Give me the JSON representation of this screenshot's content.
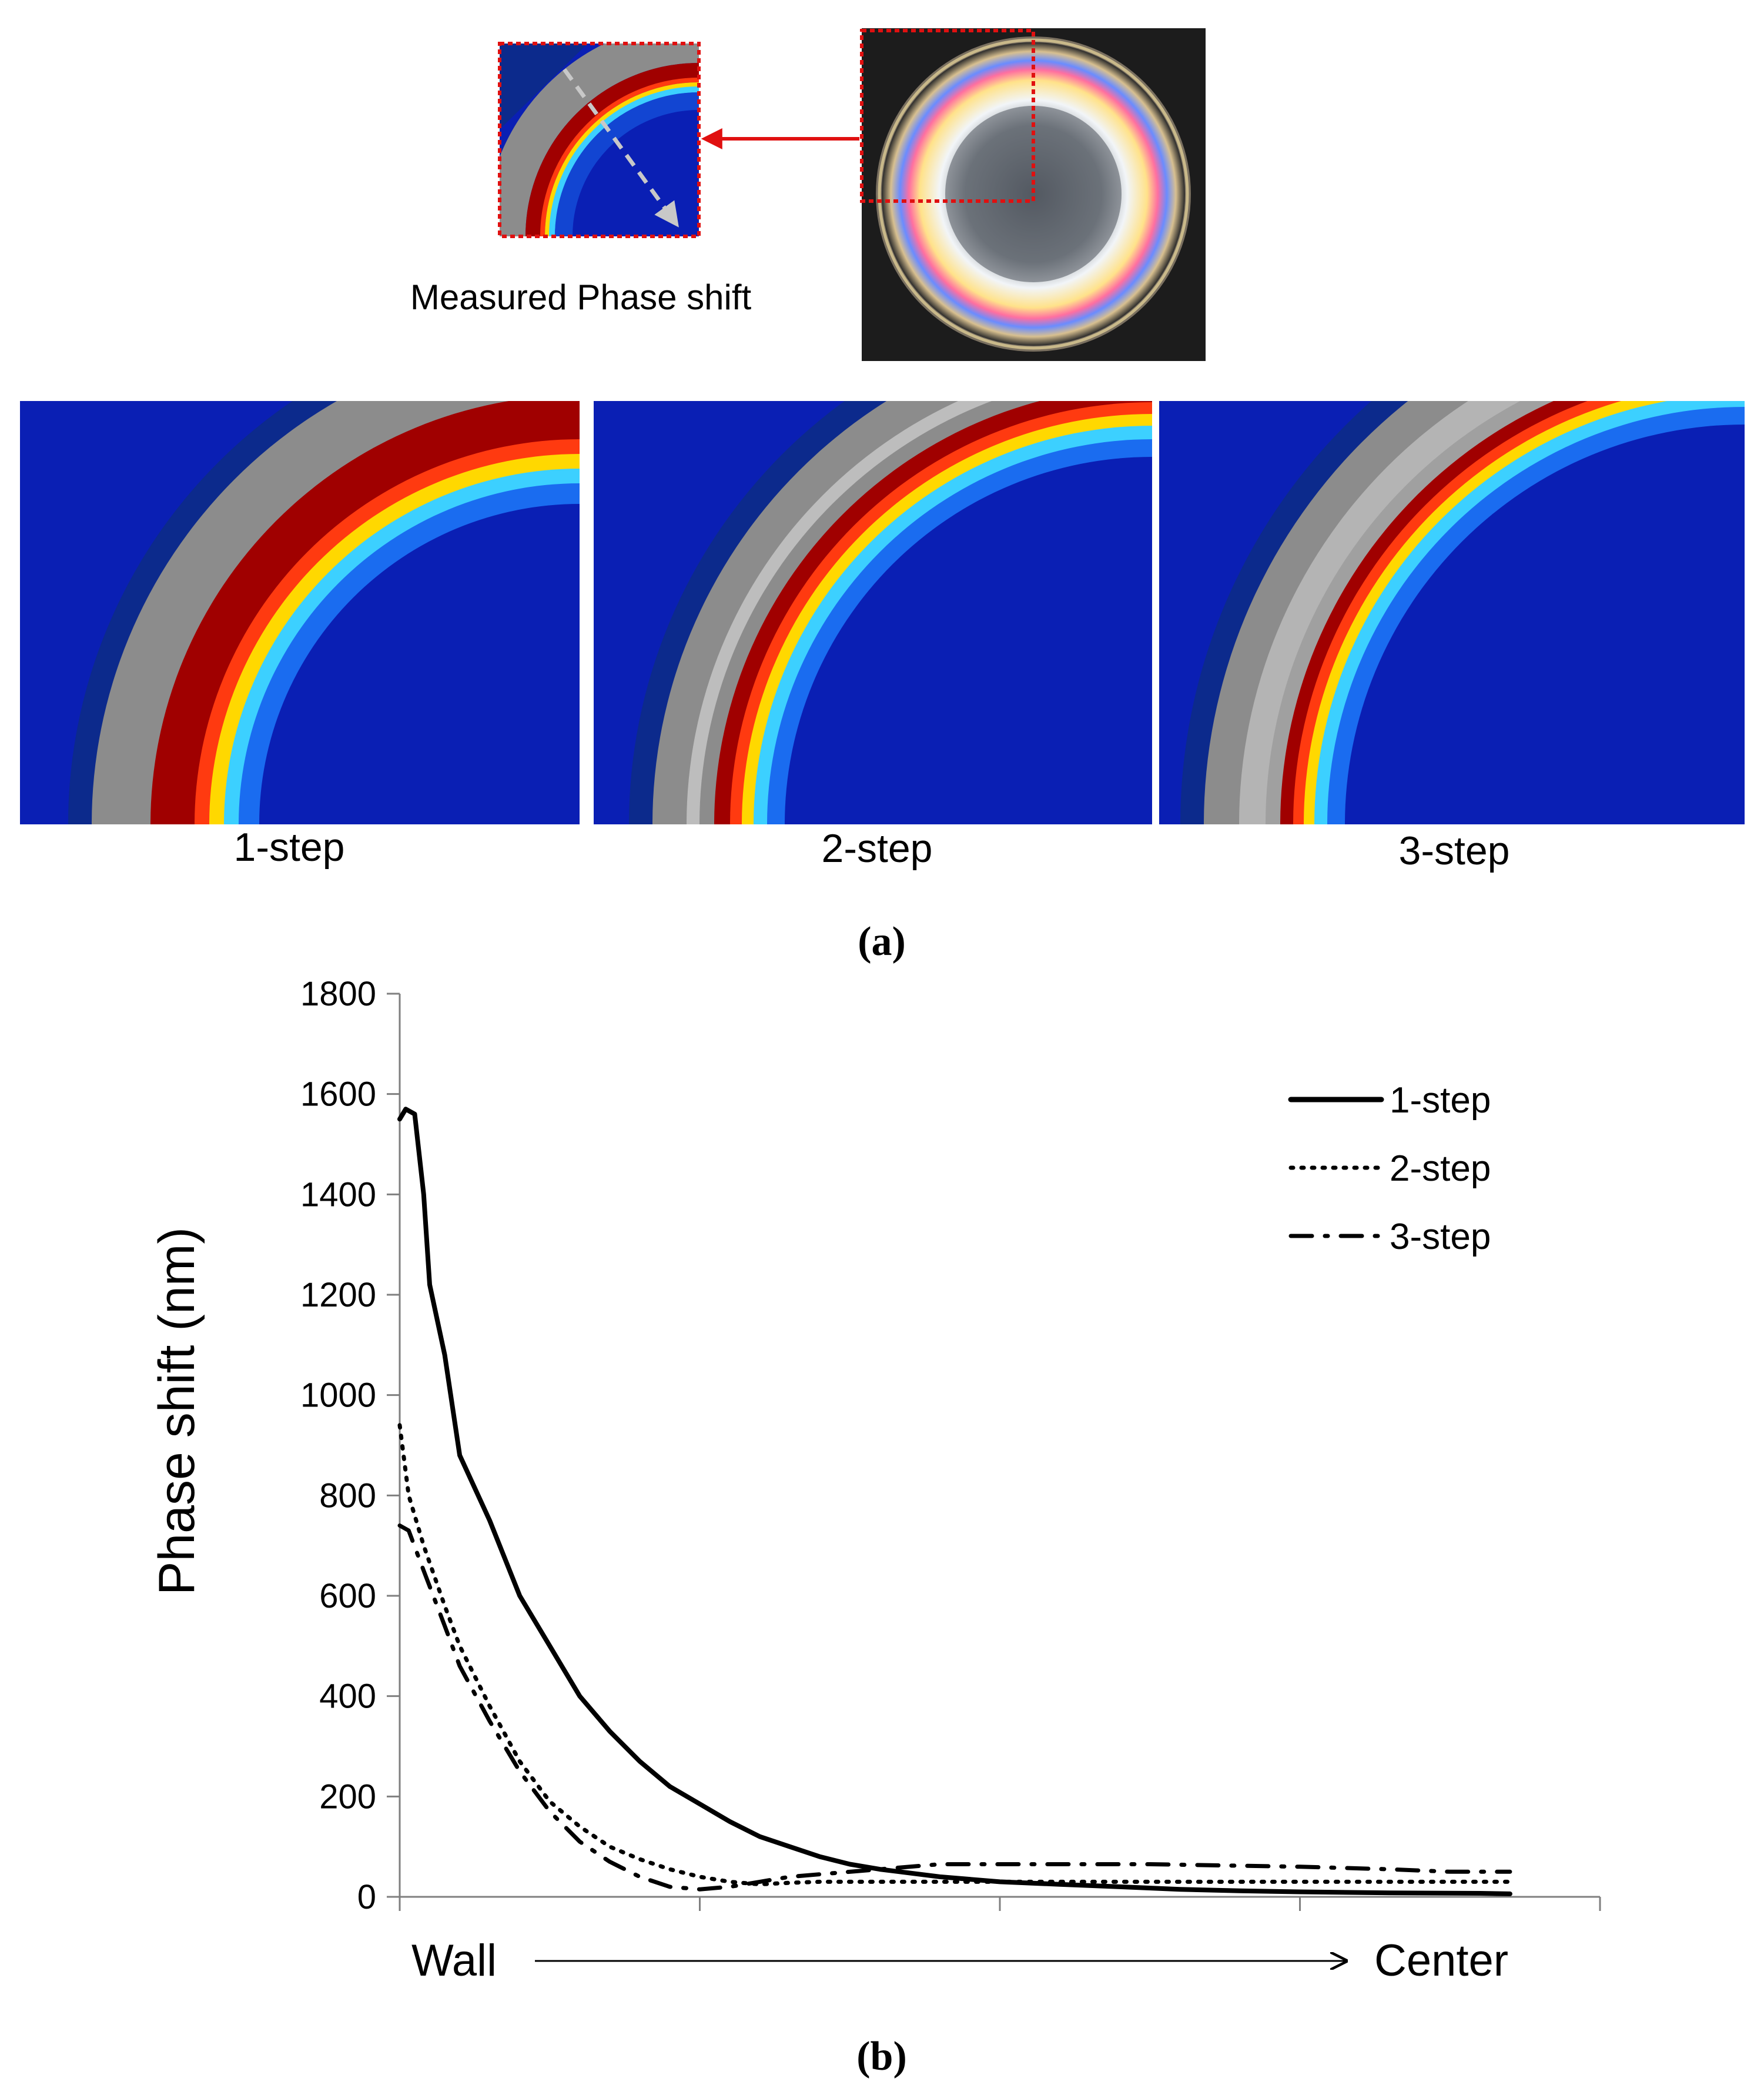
{
  "panel_a": {
    "top_label": "Measured Phase shift",
    "step_labels": [
      "1-step",
      "2-step",
      "3-step"
    ],
    "caption": "(a)",
    "colors": {
      "background_blue": "#0a1fb4",
      "corner_navy": "#0c2a8c",
      "ring_gray": "#8c8c8c",
      "ring_red": "#a00000",
      "highlight_red": "#e01010",
      "arrow_gray": "#c8c8c8"
    },
    "photo_icon": "petri-dish-photo"
  },
  "panel_b": {
    "caption": "(b)",
    "x_start_label": "Wall",
    "x_end_label": "Center"
  },
  "chart_data": {
    "type": "line",
    "title": "",
    "xlabel": "",
    "ylabel": "Phase shift (nm)",
    "ylim": [
      0,
      1800
    ],
    "yticks": [
      0,
      200,
      400,
      600,
      800,
      1000,
      1200,
      1400,
      1600,
      1800
    ],
    "xlim": [
      0,
      4
    ],
    "xticks": [
      0,
      1,
      2,
      3,
      4
    ],
    "grid": false,
    "legend_position": "top-right",
    "series": [
      {
        "name": "1-step",
        "style": "solid",
        "x": [
          0,
          0.02,
          0.05,
          0.08,
          0.1,
          0.15,
          0.2,
          0.3,
          0.4,
          0.5,
          0.6,
          0.7,
          0.8,
          0.9,
          1.0,
          1.1,
          1.2,
          1.3,
          1.4,
          1.5,
          1.6,
          1.8,
          2.0,
          2.2,
          2.4,
          2.6,
          2.8,
          3.0,
          3.3,
          3.6,
          3.7
        ],
        "y": [
          1550,
          1570,
          1560,
          1400,
          1220,
          1080,
          880,
          750,
          600,
          500,
          400,
          330,
          270,
          220,
          185,
          150,
          120,
          100,
          80,
          65,
          55,
          40,
          30,
          25,
          20,
          15,
          12,
          10,
          8,
          7,
          6
        ]
      },
      {
        "name": "2-step",
        "style": "dotted",
        "x": [
          0,
          0.03,
          0.08,
          0.15,
          0.2,
          0.3,
          0.4,
          0.5,
          0.6,
          0.7,
          0.8,
          0.9,
          1.0,
          1.1,
          1.2,
          1.3,
          1.4,
          1.6,
          1.8,
          2.0,
          2.5,
          3.0,
          3.5,
          3.7
        ],
        "y": [
          940,
          800,
          700,
          580,
          500,
          380,
          270,
          190,
          140,
          100,
          75,
          55,
          40,
          30,
          25,
          28,
          30,
          30,
          30,
          30,
          30,
          30,
          30,
          30
        ]
      },
      {
        "name": "3-step",
        "style": "dash-dot",
        "x": [
          0,
          0.03,
          0.08,
          0.15,
          0.2,
          0.3,
          0.4,
          0.5,
          0.6,
          0.7,
          0.8,
          0.9,
          1.0,
          1.1,
          1.2,
          1.3,
          1.4,
          1.6,
          1.8,
          2.0,
          2.5,
          3.0,
          3.3,
          3.5,
          3.7
        ],
        "y": [
          740,
          730,
          650,
          540,
          460,
          350,
          250,
          170,
          110,
          70,
          40,
          20,
          15,
          20,
          30,
          40,
          45,
          55,
          65,
          65,
          65,
          60,
          55,
          50,
          50
        ]
      }
    ]
  }
}
